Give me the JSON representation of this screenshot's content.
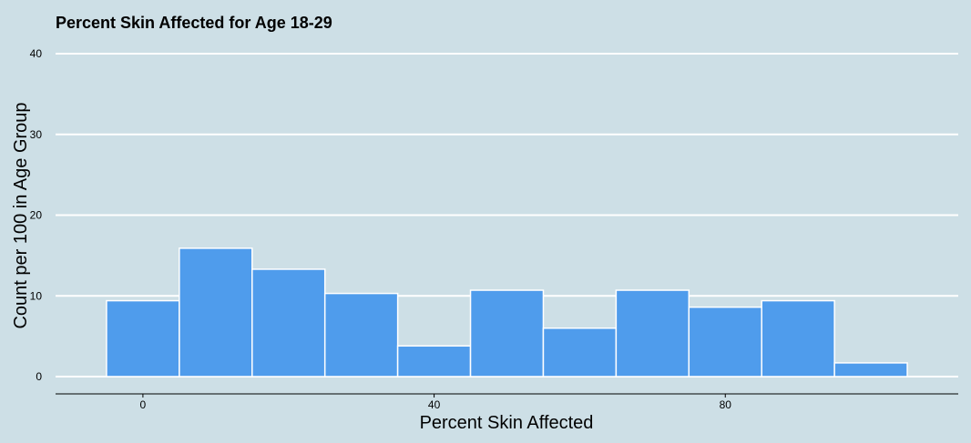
{
  "chart_data": {
    "type": "bar",
    "title": "Percent Skin Affected for Age 18-29",
    "xlabel": "Percent Skin Affected",
    "ylabel": "Count per 100 in Age Group",
    "xlim": [
      -12,
      112
    ],
    "ylim": [
      0,
      40
    ],
    "x_ticks": [
      0,
      40,
      80
    ],
    "y_ticks": [
      0,
      10,
      20,
      30,
      40
    ],
    "bin_width": 10,
    "bins": [
      {
        "center": 0,
        "value": 9.4
      },
      {
        "center": 10,
        "value": 15.9
      },
      {
        "center": 20,
        "value": 13.3
      },
      {
        "center": 30,
        "value": 10.3
      },
      {
        "center": 40,
        "value": 3.8
      },
      {
        "center": 50,
        "value": 10.7
      },
      {
        "center": 60,
        "value": 6.0
      },
      {
        "center": 70,
        "value": 10.7
      },
      {
        "center": 80,
        "value": 8.6
      },
      {
        "center": 90,
        "value": 9.4
      },
      {
        "center": 100,
        "value": 1.7
      }
    ],
    "grid": true,
    "bar_color": "#4f9cec",
    "background_color": "#cddfe6",
    "gridline_color": "#ffffff"
  }
}
